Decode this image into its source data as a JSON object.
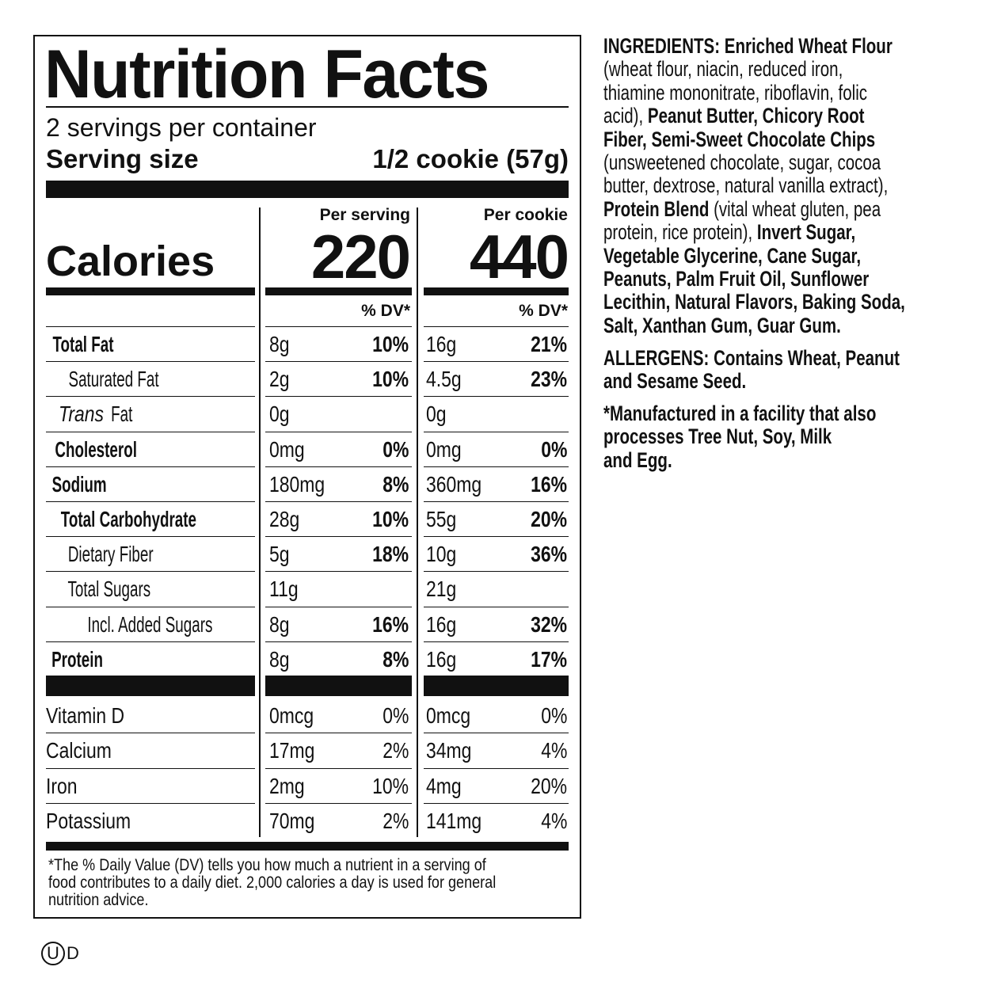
{
  "label": {
    "title": "Nutrition Facts",
    "servings_per_container": "2 servings per container",
    "serving_size_label": "Serving size",
    "serving_size_value": "1/2 cookie (57g)",
    "col1_header": "Per serving",
    "col2_header": "Per cookie",
    "calories_label": "Calories",
    "calories_per_serving": "220",
    "calories_per_cookie": "440",
    "dv_header": "% DV*",
    "nutrients": [
      {
        "label": "Total Fat",
        "bold": true,
        "indent": 0,
        "v1": "8g",
        "dv1": "10%",
        "v2": "16g",
        "dv2": "21%"
      },
      {
        "label": "Saturated Fat",
        "bold": false,
        "indent": 1,
        "v1": "2g",
        "dv1": "10%",
        "v2": "4.5g",
        "dv2": "23%"
      },
      {
        "label": "Fat",
        "italic_prefix": "Trans",
        "bold": false,
        "indent": 1,
        "v1": "0g",
        "dv1": "",
        "v2": "0g",
        "dv2": ""
      },
      {
        "label": "Cholesterol",
        "bold": true,
        "indent": 0,
        "v1": "0mg",
        "dv1": "0%",
        "v2": "0mg",
        "dv2": "0%"
      },
      {
        "label": "Sodium",
        "bold": true,
        "indent": 0,
        "v1": "180mg",
        "dv1": "8%",
        "v2": "360mg",
        "dv2": "16%"
      },
      {
        "label": "Total Carbohydrate",
        "bold": true,
        "indent": 0,
        "v1": "28g",
        "dv1": "10%",
        "v2": "55g",
        "dv2": "20%"
      },
      {
        "label": "Dietary Fiber",
        "bold": false,
        "indent": 1,
        "v1": "5g",
        "dv1": "18%",
        "v2": "10g",
        "dv2": "36%"
      },
      {
        "label": "Total Sugars",
        "bold": false,
        "indent": 1,
        "v1": "11g",
        "dv1": "",
        "v2": "21g",
        "dv2": ""
      },
      {
        "label": "Incl. Added Sugars",
        "bold": false,
        "indent": 2,
        "v1": "8g",
        "dv1": "16%",
        "v2": "16g",
        "dv2": "32%"
      },
      {
        "label": "Protein",
        "bold": true,
        "indent": 0,
        "v1": "8g",
        "dv1": "8%",
        "v2": "16g",
        "dv2": "17%"
      }
    ],
    "vitamins": [
      {
        "label": "Vitamin D",
        "v1": "0mcg",
        "dv1": "0%",
        "v2": "0mcg",
        "dv2": "0%"
      },
      {
        "label": "Calcium",
        "v1": "17mg",
        "dv1": "2%",
        "v2": "34mg",
        "dv2": "4%"
      },
      {
        "label": "Iron",
        "v1": "2mg",
        "dv1": "10%",
        "v2": "4mg",
        "dv2": "20%"
      },
      {
        "label": "Potassium",
        "v1": "70mg",
        "dv1": "2%",
        "v2": "141mg",
        "dv2": "4%"
      }
    ],
    "footnote": [
      "*The % Daily Value (DV) tells you how much a nutrient in a serving of",
      "food contributes to a daily diet. 2,000 calories a day is used for general",
      "nutrition advice."
    ]
  },
  "ingredients": {
    "lines": [
      [
        [
          "INGREDIENTS: Enriched Wheat Flour",
          true
        ]
      ],
      [
        [
          "(wheat flour, niacin, reduced iron,",
          false
        ]
      ],
      [
        [
          "thiamine mononitrate, riboflavin, folic",
          false
        ]
      ],
      [
        [
          "acid), ",
          false
        ],
        [
          "Peanut Butter, Chicory Root",
          true
        ]
      ],
      [
        [
          "Fiber, Semi-Sweet Chocolate Chips",
          true
        ]
      ],
      [
        [
          "(unsweetened chocolate, sugar, cocoa",
          false
        ]
      ],
      [
        [
          "butter, dextrose, natural vanilla extract),",
          false
        ]
      ],
      [
        [
          "Protein Blend",
          true
        ],
        [
          " (vital wheat gluten, pea",
          false
        ]
      ],
      [
        [
          "protein, rice protein), ",
          false
        ],
        [
          "Invert Sugar,",
          true
        ]
      ],
      [
        [
          "Vegetable Glycerine, Cane Sugar,",
          true
        ]
      ],
      [
        [
          "Peanuts, Palm Fruit Oil, Sunflower",
          true
        ]
      ],
      [
        [
          "Lecithin, Natural Flavors, Baking Soda,",
          true
        ]
      ],
      [
        [
          "Salt, Xanthan Gum, Guar Gum.",
          true
        ]
      ]
    ],
    "allergens": [
      "ALLERGENS: Contains Wheat, Peanut",
      "and Sesame Seed."
    ],
    "facility": [
      "*Manufactured in a facility that also",
      "processes Tree Nut, Soy, Milk",
      "and Egg."
    ]
  },
  "kosher_mark": {
    "symbol": "U",
    "suffix": "D"
  }
}
